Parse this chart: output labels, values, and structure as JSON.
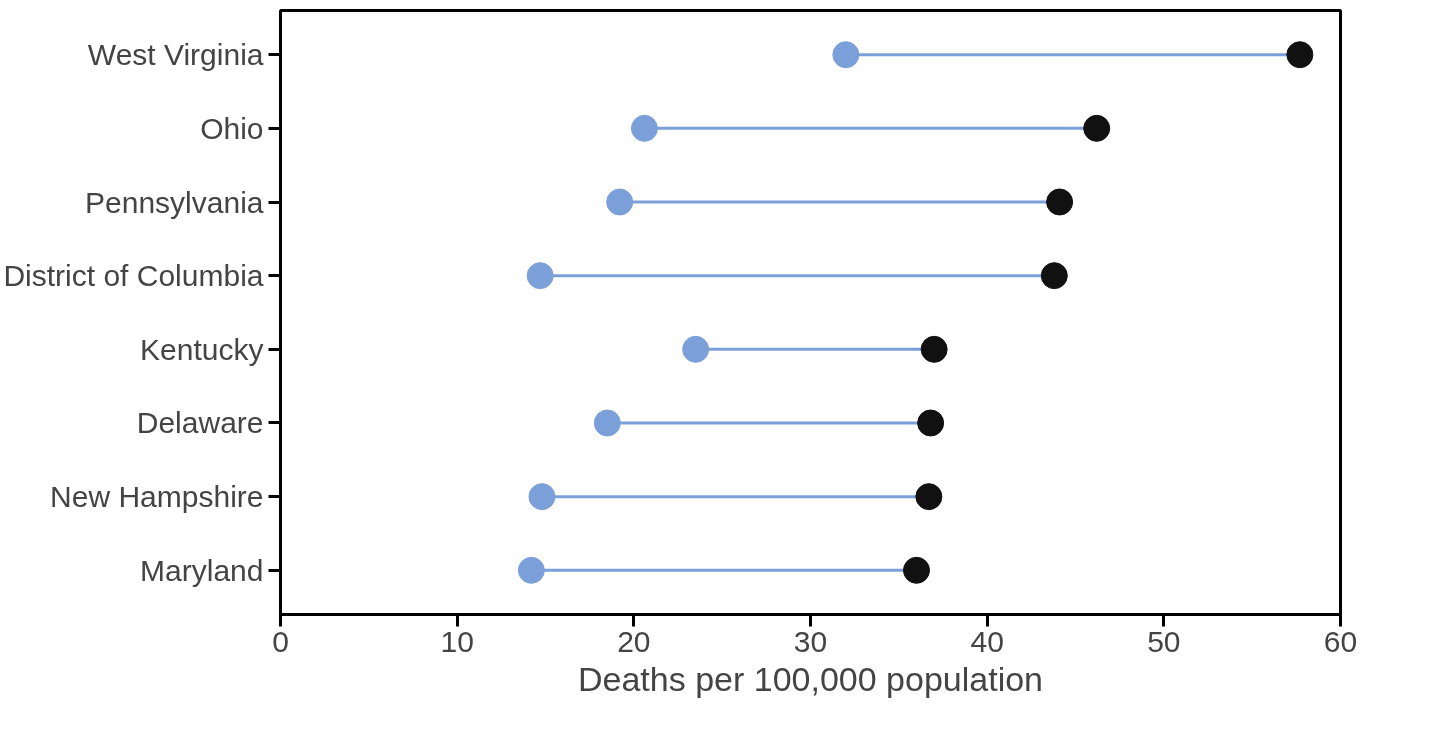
{
  "chart_data": {
    "type": "scatter",
    "orientation": "horizontal",
    "xlabel": "Deaths per 100,000 population",
    "categories": [
      "West Virginia",
      "Ohio",
      "Pennsylvania",
      "District of Columbia",
      "Kentucky",
      "Delaware",
      "New Hampshire",
      "Maryland"
    ],
    "series": [
      {
        "color": "#7b9fd9",
        "values": [
          32,
          20.6,
          19.2,
          14.7,
          23.5,
          18.5,
          14.8,
          14.2
        ]
      },
      {
        "color": "#111111",
        "values": [
          57.7,
          46.2,
          44.1,
          43.8,
          37.0,
          36.8,
          36.7,
          36.0
        ]
      }
    ],
    "xlim": [
      0,
      60
    ],
    "xticks": [
      0,
      10,
      20,
      30,
      40,
      50,
      60
    ],
    "grid": false,
    "marker": "circle"
  }
}
